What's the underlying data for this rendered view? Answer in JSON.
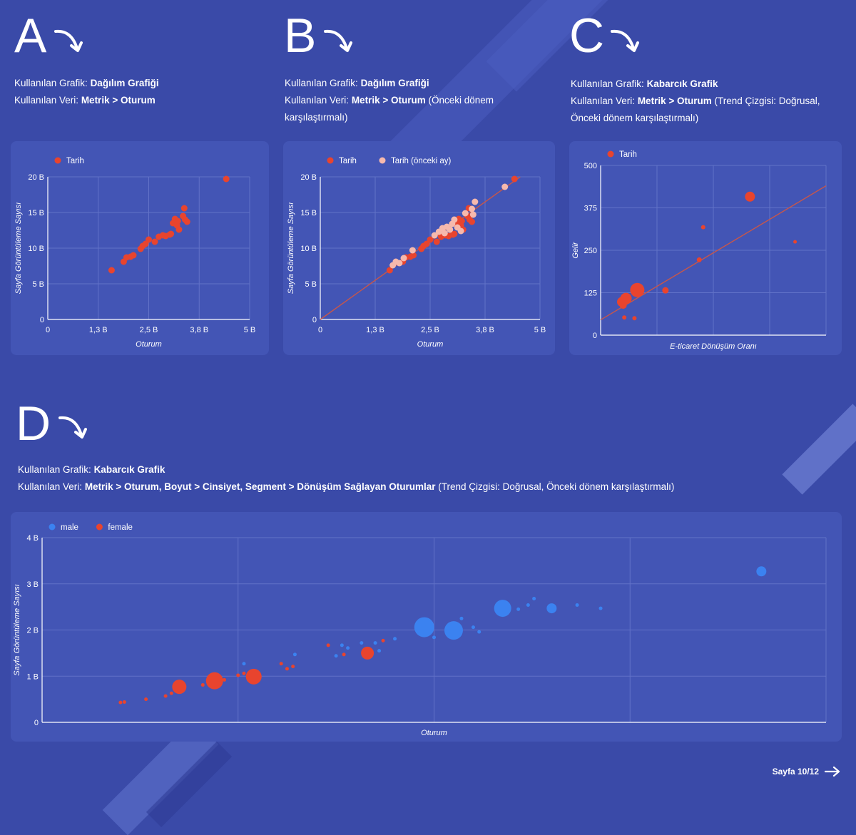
{
  "sections": [
    {
      "letter": "A",
      "label1": "Kullanılan Grafik: ",
      "chart": "Dağılım Grafiği",
      "label2": "Kullanılan Veri: ",
      "data": "Metrik > Oturum",
      "extra": ""
    },
    {
      "letter": "B",
      "label1": "Kullanılan Grafik: ",
      "chart": "Dağılım Grafiği",
      "label2": "Kullanılan Veri: ",
      "data": "Metrik > Oturum",
      "extra": " (Önceki dönem karşılaştırmalı)"
    },
    {
      "letter": "C",
      "label1": "Kullanılan Grafik: ",
      "chart": "Kabarcık Grafik",
      "label2": "Kullanılan Veri: ",
      "data": "Metrik > Oturum",
      "extra": " (Trend Çizgisi: Doğrusal, Önceki dönem karşılaştırmalı)"
    },
    {
      "letter": "D",
      "label1": "Kullanılan Grafik: ",
      "chart": "Kabarcık Grafik",
      "label2": "Kullanılan Veri: ",
      "data": "Metrik > Oturum, Boyut > Cinsiyet, Segment > Dönüşüm Sağlayan Oturumlar",
      "extra": " (Trend Çizgisi: Doğrusal, Önceki dönem karşılaştırmalı)"
    }
  ],
  "footer": {
    "label": "Sayfa 10/12"
  },
  "colors": {
    "background": "#3a4aa8",
    "panel": "#4355b5",
    "red": "#e8442e",
    "pink": "#f6b9ad",
    "blue": "#3b82f0",
    "trend": "#c8564a",
    "grid": "#6272c8"
  },
  "chart_data": [
    {
      "type": "scatter",
      "legend": [
        {
          "name": "Tarih",
          "color": "#e8442e"
        }
      ],
      "legend_position": "top-left",
      "xlabel": "Oturum",
      "ylabel": "Sayfa Görüntüleme Sayısı",
      "xlim": [
        0,
        5
      ],
      "ylim": [
        0,
        20
      ],
      "xticks": [
        0,
        1.25,
        2.5,
        3.75,
        5
      ],
      "xtick_labels": [
        "0",
        "1,3 B",
        "2,5 B",
        "3,8 B",
        "5 B"
      ],
      "yticks": [
        0,
        5,
        10,
        15,
        20
      ],
      "ytick_labels": [
        "0",
        "5 B",
        "10 B",
        "15 B",
        "20 B"
      ],
      "grid": true,
      "series": [
        {
          "name": "Tarih",
          "color": "#e8442e",
          "points": [
            [
              1.58,
              6.9
            ],
            [
              1.88,
              8.1
            ],
            [
              1.95,
              8.7
            ],
            [
              2.05,
              8.8
            ],
            [
              2.12,
              9.0
            ],
            [
              2.3,
              9.9
            ],
            [
              2.35,
              10.3
            ],
            [
              2.42,
              10.6
            ],
            [
              2.5,
              11.2
            ],
            [
              2.65,
              10.9
            ],
            [
              2.75,
              11.6
            ],
            [
              2.85,
              11.8
            ],
            [
              2.92,
              11.7
            ],
            [
              3.02,
              11.9
            ],
            [
              3.05,
              12.0
            ],
            [
              3.1,
              13.5
            ],
            [
              3.15,
              14.1
            ],
            [
              3.2,
              13.2
            ],
            [
              3.25,
              12.6
            ],
            [
              3.22,
              13.8
            ],
            [
              3.35,
              14.5
            ],
            [
              3.4,
              14.0
            ],
            [
              3.45,
              13.7
            ],
            [
              3.38,
              15.6
            ],
            [
              4.42,
              19.7
            ]
          ]
        }
      ]
    },
    {
      "type": "scatter",
      "legend": [
        {
          "name": "Tarih",
          "color": "#e8442e"
        },
        {
          "name": "Tarih (önceki ay)",
          "color": "#f6b9ad"
        }
      ],
      "legend_position": "top-left",
      "xlabel": "Oturum",
      "ylabel": "Sayfa Görüntüleme Sayısı",
      "xlim": [
        0,
        5
      ],
      "ylim": [
        0,
        20
      ],
      "xticks": [
        0,
        1.25,
        2.5,
        3.75,
        5
      ],
      "xtick_labels": [
        "0",
        "1,3 B",
        "2,5 B",
        "3,8 B",
        "5 B"
      ],
      "yticks": [
        0,
        5,
        10,
        15,
        20
      ],
      "ytick_labels": [
        "0",
        "5 B",
        "10 B",
        "15 B",
        "20 B"
      ],
      "grid": true,
      "trend": [
        [
          0,
          0
        ],
        [
          4.55,
          20
        ]
      ],
      "series": [
        {
          "name": "Tarih",
          "color": "#e8442e",
          "points": [
            [
              1.58,
              6.9
            ],
            [
              1.88,
              8.1
            ],
            [
              1.95,
              8.7
            ],
            [
              2.05,
              8.8
            ],
            [
              2.12,
              9.0
            ],
            [
              2.3,
              9.9
            ],
            [
              2.35,
              10.3
            ],
            [
              2.42,
              10.6
            ],
            [
              2.5,
              11.2
            ],
            [
              2.65,
              10.9
            ],
            [
              2.75,
              11.6
            ],
            [
              2.85,
              11.8
            ],
            [
              2.92,
              11.7
            ],
            [
              3.02,
              11.9
            ],
            [
              3.05,
              12.0
            ],
            [
              3.1,
              13.5
            ],
            [
              3.15,
              14.1
            ],
            [
              3.2,
              13.2
            ],
            [
              3.25,
              12.6
            ],
            [
              3.22,
              13.8
            ],
            [
              3.35,
              14.5
            ],
            [
              3.4,
              14.0
            ],
            [
              3.45,
              13.7
            ],
            [
              3.38,
              15.6
            ],
            [
              4.42,
              19.7
            ]
          ]
        },
        {
          "name": "Tarih (önceki ay)",
          "color": "#f6b9ad",
          "points": [
            [
              1.65,
              7.6
            ],
            [
              1.72,
              8.1
            ],
            [
              1.8,
              7.9
            ],
            [
              1.9,
              8.6
            ],
            [
              2.1,
              9.7
            ],
            [
              2.6,
              11.8
            ],
            [
              2.7,
              12.3
            ],
            [
              2.78,
              12.8
            ],
            [
              2.83,
              12.1
            ],
            [
              2.88,
              13.0
            ],
            [
              2.95,
              12.6
            ],
            [
              3.0,
              13.4
            ],
            [
              3.05,
              14.0
            ],
            [
              3.12,
              12.9
            ],
            [
              3.2,
              12.4
            ],
            [
              3.3,
              14.9
            ],
            [
              3.45,
              15.5
            ],
            [
              3.48,
              14.7
            ],
            [
              3.52,
              16.5
            ],
            [
              4.2,
              18.6
            ]
          ]
        }
      ]
    },
    {
      "type": "bubble",
      "legend": [
        {
          "name": "Tarih",
          "color": "#e8442e"
        }
      ],
      "legend_position": "top-left",
      "xlabel": "E-ticaret Dönüşüm Oranı",
      "ylabel": "Gelir",
      "xlim": [
        0,
        4
      ],
      "ylim": [
        0,
        500
      ],
      "yticks": [
        0,
        125,
        250,
        375,
        500
      ],
      "ytick_labels": [
        "0",
        "125",
        "250",
        "375",
        "500"
      ],
      "xticks": [
        0,
        1,
        2,
        3,
        4
      ],
      "xtick_labels": [],
      "grid": true,
      "trend": [
        [
          0,
          45
        ],
        [
          4,
          440
        ]
      ],
      "series": [
        {
          "name": "Tarih",
          "color": "#e8442e",
          "points": [
            {
              "x": 0.38,
              "y": 98,
              "size": 14
            },
            {
              "x": 0.45,
              "y": 108,
              "size": 16
            },
            {
              "x": 0.4,
              "y": 88,
              "size": 10
            },
            {
              "x": 0.65,
              "y": 133,
              "size": 20
            },
            {
              "x": 0.42,
              "y": 52,
              "size": 6
            },
            {
              "x": 0.6,
              "y": 50,
              "size": 6
            },
            {
              "x": 1.15,
              "y": 132,
              "size": 9
            },
            {
              "x": 1.75,
              "y": 222,
              "size": 7
            },
            {
              "x": 1.82,
              "y": 318,
              "size": 6
            },
            {
              "x": 2.65,
              "y": 408,
              "size": 14
            },
            {
              "x": 3.45,
              "y": 275,
              "size": 5
            }
          ]
        }
      ]
    },
    {
      "type": "bubble",
      "legend": [
        {
          "name": "male",
          "color": "#3b82f0"
        },
        {
          "name": "female",
          "color": "#e8442e"
        }
      ],
      "legend_position": "top-left",
      "xlabel": "Oturum",
      "ylabel": "Sayfa Görüntüleme Sayısı",
      "xlim": [
        0,
        4
      ],
      "ylim": [
        0,
        4
      ],
      "yticks": [
        0,
        1,
        2,
        3,
        4
      ],
      "ytick_labels": [
        "0",
        "1 B",
        "2 B",
        "3 B",
        "4 B"
      ],
      "xticks": [
        0,
        1,
        2,
        3,
        4
      ],
      "xtick_labels": [],
      "grid": true,
      "series": [
        {
          "name": "male",
          "color": "#3b82f0",
          "points": [
            {
              "x": 1.03,
              "y": 1.27,
              "size": 5
            },
            {
              "x": 1.29,
              "y": 1.47,
              "size": 5
            },
            {
              "x": 1.5,
              "y": 1.44,
              "size": 5
            },
            {
              "x": 1.53,
              "y": 1.67,
              "size": 5
            },
            {
              "x": 1.56,
              "y": 1.61,
              "size": 5
            },
            {
              "x": 1.63,
              "y": 1.72,
              "size": 5
            },
            {
              "x": 1.65,
              "y": 1.56,
              "size": 5
            },
            {
              "x": 1.7,
              "y": 1.72,
              "size": 5
            },
            {
              "x": 1.72,
              "y": 1.55,
              "size": 5
            },
            {
              "x": 1.8,
              "y": 1.81,
              "size": 5
            },
            {
              "x": 1.95,
              "y": 2.06,
              "size": 28
            },
            {
              "x": 2.0,
              "y": 1.84,
              "size": 5
            },
            {
              "x": 2.1,
              "y": 1.99,
              "size": 26
            },
            {
              "x": 2.14,
              "y": 2.25,
              "size": 5
            },
            {
              "x": 2.2,
              "y": 2.06,
              "size": 5
            },
            {
              "x": 2.23,
              "y": 1.96,
              "size": 5
            },
            {
              "x": 2.35,
              "y": 2.47,
              "size": 24
            },
            {
              "x": 2.43,
              "y": 2.45,
              "size": 5
            },
            {
              "x": 2.48,
              "y": 2.54,
              "size": 5
            },
            {
              "x": 2.51,
              "y": 2.68,
              "size": 5
            },
            {
              "x": 2.6,
              "y": 2.47,
              "size": 14
            },
            {
              "x": 2.73,
              "y": 2.54,
              "size": 5
            },
            {
              "x": 2.85,
              "y": 2.47,
              "size": 5
            },
            {
              "x": 3.67,
              "y": 3.27,
              "size": 14
            }
          ]
        },
        {
          "name": "female",
          "color": "#e8442e",
          "points": [
            {
              "x": 0.4,
              "y": 0.43,
              "size": 5
            },
            {
              "x": 0.42,
              "y": 0.44,
              "size": 5
            },
            {
              "x": 0.53,
              "y": 0.5,
              "size": 5
            },
            {
              "x": 0.63,
              "y": 0.57,
              "size": 5
            },
            {
              "x": 0.66,
              "y": 0.63,
              "size": 5
            },
            {
              "x": 0.7,
              "y": 0.77,
              "size": 20
            },
            {
              "x": 0.82,
              "y": 0.81,
              "size": 5
            },
            {
              "x": 0.85,
              "y": 0.93,
              "size": 5
            },
            {
              "x": 0.88,
              "y": 0.9,
              "size": 24
            },
            {
              "x": 0.93,
              "y": 0.92,
              "size": 5
            },
            {
              "x": 1.0,
              "y": 1.02,
              "size": 5
            },
            {
              "x": 1.03,
              "y": 1.06,
              "size": 5
            },
            {
              "x": 1.08,
              "y": 0.99,
              "size": 22
            },
            {
              "x": 1.22,
              "y": 1.27,
              "size": 5
            },
            {
              "x": 1.25,
              "y": 1.16,
              "size": 5
            },
            {
              "x": 1.28,
              "y": 1.21,
              "size": 5
            },
            {
              "x": 1.46,
              "y": 1.67,
              "size": 5
            },
            {
              "x": 1.54,
              "y": 1.47,
              "size": 5
            },
            {
              "x": 1.66,
              "y": 1.5,
              "size": 18
            },
            {
              "x": 1.74,
              "y": 1.77,
              "size": 5
            }
          ]
        }
      ]
    }
  ]
}
